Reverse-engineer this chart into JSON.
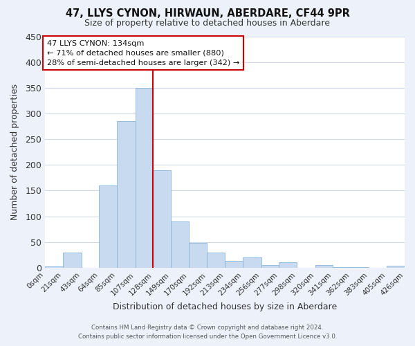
{
  "title": "47, LLYS CYNON, HIRWAUN, ABERDARE, CF44 9PR",
  "subtitle": "Size of property relative to detached houses in Aberdare",
  "xlabel": "Distribution of detached houses by size in Aberdare",
  "ylabel": "Number of detached properties",
  "bar_labels": [
    "0sqm",
    "21sqm",
    "43sqm",
    "64sqm",
    "85sqm",
    "107sqm",
    "128sqm",
    "149sqm",
    "170sqm",
    "192sqm",
    "213sqm",
    "234sqm",
    "256sqm",
    "277sqm",
    "298sqm",
    "320sqm",
    "341sqm",
    "362sqm",
    "383sqm",
    "405sqm",
    "426sqm"
  ],
  "bar_heights": [
    3,
    30,
    0,
    160,
    285,
    350,
    190,
    90,
    48,
    30,
    14,
    20,
    5,
    11,
    0,
    5,
    1,
    1,
    0,
    4
  ],
  "bar_color": "#c8daf0",
  "bar_edge_color": "#7aaced6",
  "vline_x": 128,
  "vline_color": "#cc0000",
  "ylim": [
    0,
    450
  ],
  "yticks": [
    0,
    50,
    100,
    150,
    200,
    250,
    300,
    350,
    400,
    450
  ],
  "annotation_title": "47 LLYS CYNON: 134sqm",
  "annotation_line1": "← 71% of detached houses are smaller (880)",
  "annotation_line2": "28% of semi-detached houses are larger (342) →",
  "footer1": "Contains HM Land Registry data © Crown copyright and database right 2024.",
  "footer2": "Contains public sector information licensed under the Open Government Licence v3.0.",
  "bg_color": "#edf2fa",
  "plot_bg_color": "#ffffff",
  "grid_color": "#d0d8e8"
}
